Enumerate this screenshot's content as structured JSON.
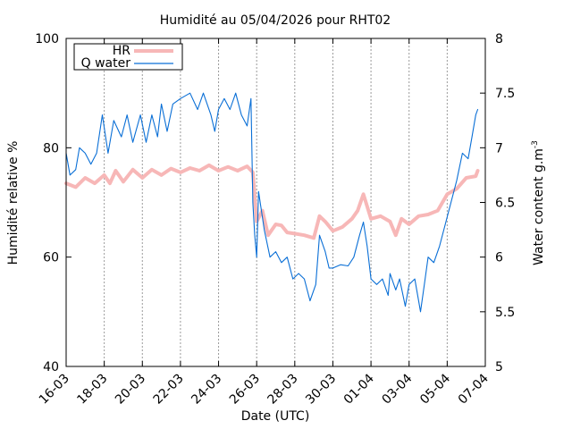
{
  "chart_data": {
    "type": "line",
    "title": "Humidité au 05/04/2026 pour RHT02",
    "xlabel": "Date (UTC)",
    "ylabel_left": "Humidité relative %",
    "ylabel_right_main": "Water content g.m",
    "ylabel_right_sup": "-3",
    "y_left_range": [
      40,
      100
    ],
    "y_right_range": [
      5,
      8
    ],
    "x_range_days": [
      16,
      38
    ],
    "y_left_ticks": [
      "40",
      "60",
      "80",
      "100"
    ],
    "y_right_ticks": [
      "5",
      "5.5",
      "6",
      "6.5",
      "7",
      "7.5",
      "8"
    ],
    "x_ticks": [
      "16-03",
      "18-03",
      "20-03",
      "22-03",
      "24-03",
      "26-03",
      "28-03",
      "30-03",
      "01-04",
      "03-04",
      "05-04",
      "07-04"
    ],
    "grid": "vertical dashed",
    "legend_position": "top-left",
    "colors": {
      "hr": "#f7b7b7",
      "water": "#0a6fd6"
    },
    "series": [
      {
        "name": "HR",
        "axis": "left",
        "points": [
          [
            16.0,
            73.5
          ],
          [
            16.5,
            72.8
          ],
          [
            17.0,
            74.5
          ],
          [
            17.5,
            73.5
          ],
          [
            18.0,
            75.0
          ],
          [
            18.3,
            73.5
          ],
          [
            18.6,
            75.8
          ],
          [
            19.0,
            73.8
          ],
          [
            19.5,
            76.0
          ],
          [
            20.0,
            74.5
          ],
          [
            20.5,
            76.0
          ],
          [
            21.0,
            75.0
          ],
          [
            21.5,
            76.2
          ],
          [
            22.0,
            75.5
          ],
          [
            22.5,
            76.3
          ],
          [
            23.0,
            75.8
          ],
          [
            23.5,
            76.8
          ],
          [
            24.0,
            75.8
          ],
          [
            24.5,
            76.5
          ],
          [
            25.0,
            75.8
          ],
          [
            25.5,
            76.6
          ],
          [
            25.8,
            75.5
          ],
          [
            26.0,
            66.5
          ],
          [
            26.3,
            68.5
          ],
          [
            26.6,
            64.0
          ],
          [
            27.0,
            66.0
          ],
          [
            27.3,
            65.8
          ],
          [
            27.6,
            64.5
          ],
          [
            28.0,
            64.3
          ],
          [
            28.5,
            64.0
          ],
          [
            29.0,
            63.5
          ],
          [
            29.3,
            67.5
          ],
          [
            29.6,
            66.5
          ],
          [
            30.0,
            64.8
          ],
          [
            30.5,
            65.5
          ],
          [
            31.0,
            67.0
          ],
          [
            31.3,
            68.5
          ],
          [
            31.6,
            71.5
          ],
          [
            32.0,
            67.0
          ],
          [
            32.5,
            67.5
          ],
          [
            33.0,
            66.5
          ],
          [
            33.3,
            64.0
          ],
          [
            33.6,
            67.0
          ],
          [
            34.0,
            66.0
          ],
          [
            34.5,
            67.5
          ],
          [
            35.0,
            67.8
          ],
          [
            35.5,
            68.5
          ],
          [
            36.0,
            71.5
          ],
          [
            36.5,
            72.5
          ],
          [
            37.0,
            74.5
          ],
          [
            37.5,
            74.8
          ],
          [
            37.6,
            75.8
          ]
        ]
      },
      {
        "name": "Q water",
        "axis": "right",
        "points": [
          [
            16.0,
            6.95
          ],
          [
            16.2,
            6.75
          ],
          [
            16.5,
            6.8
          ],
          [
            16.7,
            7.0
          ],
          [
            17.0,
            6.95
          ],
          [
            17.3,
            6.85
          ],
          [
            17.6,
            6.95
          ],
          [
            17.9,
            7.3
          ],
          [
            18.2,
            6.95
          ],
          [
            18.5,
            7.25
          ],
          [
            18.9,
            7.1
          ],
          [
            19.2,
            7.3
          ],
          [
            19.5,
            7.05
          ],
          [
            19.9,
            7.3
          ],
          [
            20.2,
            7.05
          ],
          [
            20.5,
            7.3
          ],
          [
            20.8,
            7.1
          ],
          [
            21.0,
            7.4
          ],
          [
            21.3,
            7.15
          ],
          [
            21.6,
            7.4
          ],
          [
            22.0,
            7.45
          ],
          [
            22.5,
            7.5
          ],
          [
            22.9,
            7.35
          ],
          [
            23.2,
            7.5
          ],
          [
            23.6,
            7.3
          ],
          [
            23.8,
            7.15
          ],
          [
            24.0,
            7.35
          ],
          [
            24.3,
            7.45
          ],
          [
            24.6,
            7.35
          ],
          [
            24.9,
            7.5
          ],
          [
            25.2,
            7.3
          ],
          [
            25.5,
            7.2
          ],
          [
            25.7,
            7.45
          ],
          [
            25.8,
            6.5
          ],
          [
            25.9,
            6.2
          ],
          [
            26.0,
            6.0
          ],
          [
            26.1,
            6.6
          ],
          [
            26.4,
            6.25
          ],
          [
            26.7,
            6.0
          ],
          [
            27.0,
            6.05
          ],
          [
            27.3,
            5.95
          ],
          [
            27.6,
            6.0
          ],
          [
            27.9,
            5.8
          ],
          [
            28.2,
            5.85
          ],
          [
            28.5,
            5.8
          ],
          [
            28.8,
            5.6
          ],
          [
            29.1,
            5.75
          ],
          [
            29.3,
            6.2
          ],
          [
            29.6,
            6.05
          ],
          [
            29.8,
            5.9
          ],
          [
            30.0,
            5.9
          ],
          [
            30.4,
            5.93
          ],
          [
            30.8,
            5.92
          ],
          [
            31.1,
            6.0
          ],
          [
            31.4,
            6.2
          ],
          [
            31.6,
            6.32
          ],
          [
            31.8,
            6.1
          ],
          [
            32.0,
            5.8
          ],
          [
            32.3,
            5.75
          ],
          [
            32.6,
            5.8
          ],
          [
            32.9,
            5.65
          ],
          [
            33.0,
            5.85
          ],
          [
            33.3,
            5.7
          ],
          [
            33.5,
            5.8
          ],
          [
            33.8,
            5.55
          ],
          [
            34.0,
            5.75
          ],
          [
            34.3,
            5.8
          ],
          [
            34.5,
            5.6
          ],
          [
            34.6,
            5.5
          ],
          [
            34.8,
            5.75
          ],
          [
            35.0,
            6.0
          ],
          [
            35.3,
            5.95
          ],
          [
            35.6,
            6.1
          ],
          [
            35.9,
            6.3
          ],
          [
            36.2,
            6.5
          ],
          [
            36.5,
            6.7
          ],
          [
            36.8,
            6.95
          ],
          [
            37.1,
            6.9
          ],
          [
            37.3,
            7.1
          ],
          [
            37.5,
            7.3
          ],
          [
            37.6,
            7.35
          ]
        ]
      }
    ]
  }
}
